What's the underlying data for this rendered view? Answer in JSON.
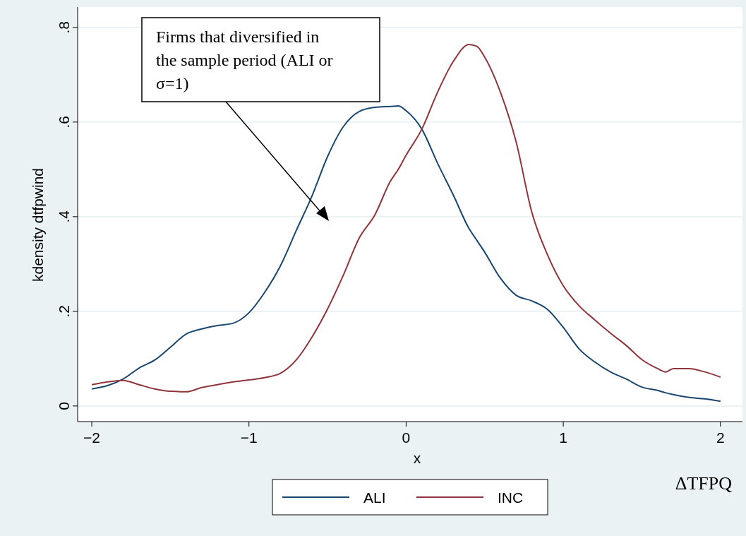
{
  "chart_data": {
    "type": "line",
    "xlabel": "x",
    "ylabel": "kdensity dtfpwind",
    "xlim": [
      -2.09,
      2.14
    ],
    "xticks": [
      {
        "value": -2,
        "label": "−2"
      },
      {
        "value": -1,
        "label": "−1"
      },
      0,
      1,
      2
    ],
    "ylim": [
      -0.033,
      0.843
    ],
    "yticks": [
      0,
      {
        "value": 0.2,
        "label": ".2"
      },
      {
        "value": 0.4,
        "label": ".4"
      },
      {
        "value": 0.6,
        "label": ".6"
      },
      {
        "value": 0.8,
        "label": ".8"
      }
    ],
    "grid": "y",
    "legend": "bottom",
    "line_style": "solid",
    "annotations": [
      "Firms that diversified in the sample period (ALI or σ=1)",
      "ΔTFPQ"
    ],
    "x": [
      -2,
      -1.9,
      -1.8,
      -1.7,
      -1.6,
      -1.5,
      -1.4,
      -1.3,
      -1.2,
      -1.1,
      -1,
      -0.9,
      -0.8,
      -0.7,
      -0.6,
      -0.5,
      -0.4,
      -0.3,
      -0.2,
      -0.1,
      -0.05,
      0,
      0.1,
      0.2,
      0.3,
      0.4,
      0.45,
      0.5,
      0.6,
      0.7,
      0.8,
      0.9,
      1,
      1.1,
      1.2,
      1.3,
      1.4,
      1.5,
      1.6,
      1.65,
      1.7,
      1.8,
      1.9,
      2
    ],
    "series": [
      {
        "name": "ALI",
        "color": "#1a476f",
        "values": [
          0.036,
          0.043,
          0.057,
          0.08,
          0.097,
          0.124,
          0.152,
          0.163,
          0.17,
          0.175,
          0.197,
          0.24,
          0.296,
          0.37,
          0.443,
          0.527,
          0.59,
          0.622,
          0.631,
          0.633,
          0.634,
          0.624,
          0.585,
          0.513,
          0.446,
          0.375,
          0.35,
          0.325,
          0.27,
          0.234,
          0.222,
          0.204,
          0.166,
          0.121,
          0.093,
          0.072,
          0.057,
          0.04,
          0.033,
          0.028,
          0.024,
          0.018,
          0.015,
          0.01
        ]
      },
      {
        "name": "INC",
        "color": "#90353b",
        "values": [
          0.045,
          0.051,
          0.054,
          0.045,
          0.036,
          0.031,
          0.03,
          0.039,
          0.045,
          0.051,
          0.055,
          0.06,
          0.069,
          0.097,
          0.145,
          0.205,
          0.276,
          0.354,
          0.403,
          0.475,
          0.5,
          0.53,
          0.585,
          0.663,
          0.728,
          0.764,
          0.76,
          0.737,
          0.663,
          0.558,
          0.409,
          0.319,
          0.254,
          0.212,
          0.182,
          0.154,
          0.128,
          0.098,
          0.079,
          0.072,
          0.079,
          0.079,
          0.072,
          0.061
        ]
      }
    ]
  }
}
